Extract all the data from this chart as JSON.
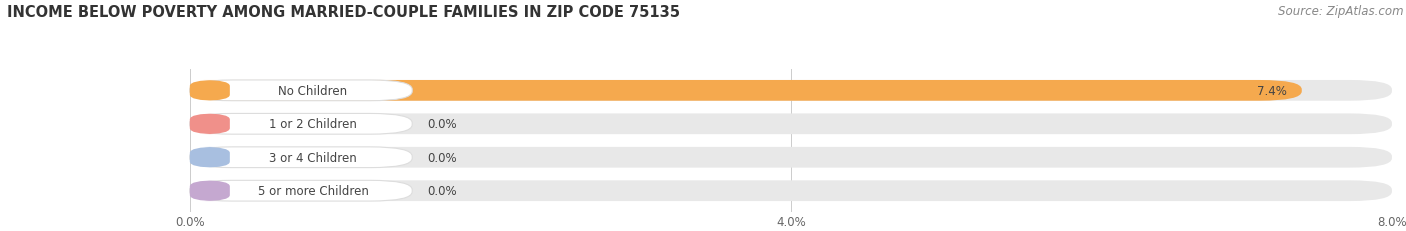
{
  "title": "INCOME BELOW POVERTY AMONG MARRIED-COUPLE FAMILIES IN ZIP CODE 75135",
  "source": "Source: ZipAtlas.com",
  "categories": [
    "No Children",
    "1 or 2 Children",
    "3 or 4 Children",
    "5 or more Children"
  ],
  "values": [
    7.4,
    0.0,
    0.0,
    0.0
  ],
  "bar_colors": [
    "#F5A94E",
    "#F0908A",
    "#A8BFE0",
    "#C5A8D0"
  ],
  "xlim": [
    0,
    8.0
  ],
  "xticks": [
    0.0,
    4.0,
    8.0
  ],
  "xticklabels": [
    "0.0%",
    "4.0%",
    "8.0%"
  ],
  "background_color": "#ffffff",
  "bar_track_color": "#e8e8e8",
  "title_fontsize": 10.5,
  "source_fontsize": 8.5,
  "label_fontsize": 8.5,
  "value_fontsize": 8.5
}
